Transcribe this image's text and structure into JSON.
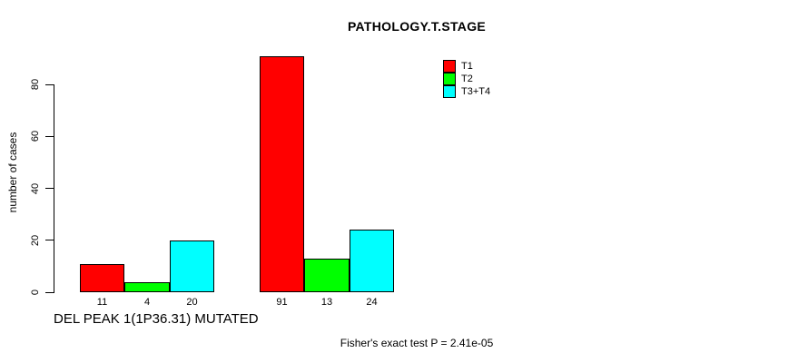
{
  "chart_data": {
    "type": "bar",
    "title": "PATHOLOGY.T.STAGE",
    "ylabel": "number of cases",
    "xlabel": "",
    "annotation": "Fisher's exact test P = 2.41e-05",
    "ylim": [
      0,
      91
    ],
    "yticks": [
      0,
      20,
      40,
      60,
      80
    ],
    "grid": false,
    "legend_position": "upper-right-inside",
    "bar_value_labels_shown": true,
    "categories": [
      "DEL PEAK 1(1P36.31) MUTATED",
      ""
    ],
    "series": [
      {
        "name": "T1",
        "color": "#ff0000",
        "values": [
          11,
          91
        ]
      },
      {
        "name": "T2",
        "color": "#00ff00",
        "values": [
          4,
          13
        ]
      },
      {
        "name": "T3+T4",
        "color": "#00ffff",
        "values": [
          20,
          24
        ]
      }
    ]
  },
  "colors": {
    "background": "#ffffff",
    "axis": "#000000",
    "text": "#000000",
    "bar_border": "#000000"
  }
}
